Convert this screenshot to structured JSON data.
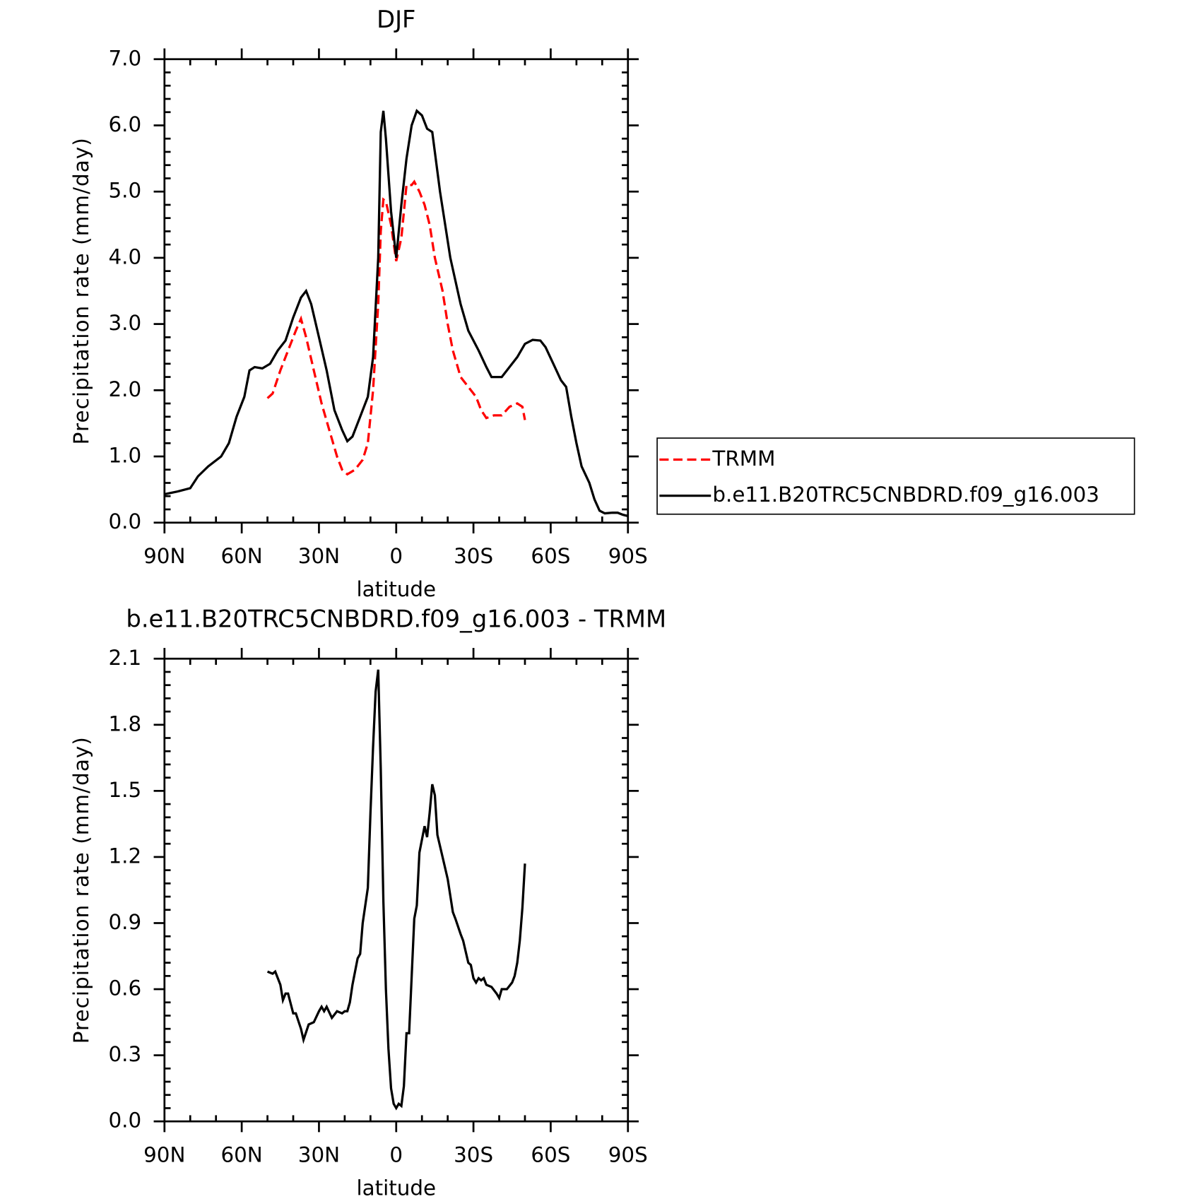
{
  "chart_data": [
    {
      "type": "line",
      "title": "DJF",
      "x_label": "latitude",
      "y_label": "Precipitation rate (mm/day)",
      "xlim": [
        90,
        -90
      ],
      "xticks": [
        {
          "value": 90,
          "label": "90N"
        },
        {
          "value": 60,
          "label": "60N"
        },
        {
          "value": 30,
          "label": "30N"
        },
        0,
        {
          "value": -30,
          "label": "30S"
        },
        {
          "value": -60,
          "label": "60S"
        },
        {
          "value": -90,
          "label": "90S"
        }
      ],
      "ylim": [
        0,
        7
      ],
      "yticks": [
        {
          "value": 0,
          "label": "0.0"
        },
        {
          "value": 1,
          "label": "1.0"
        },
        {
          "value": 2,
          "label": "2.0"
        },
        {
          "value": 3,
          "label": "3.0"
        },
        {
          "value": 4,
          "label": "4.0"
        },
        {
          "value": 5,
          "label": "5.0"
        },
        {
          "value": 6,
          "label": "6.0"
        },
        {
          "value": 7,
          "label": "7.0"
        }
      ],
      "legend": "right",
      "series": [
        {
          "name": "TRMM",
          "color": "#ff0000",
          "line_style": "dashed",
          "x": [
            50,
            48,
            45,
            42,
            39,
            37,
            35,
            32,
            29,
            26,
            23,
            21,
            19,
            16,
            13,
            11,
            9,
            7,
            6,
            5,
            4,
            2,
            0,
            -2,
            -4,
            -6,
            -7,
            -9,
            -11,
            -13,
            -15,
            -18,
            -20,
            -22,
            -25,
            -28,
            -31,
            -33,
            -35,
            -38,
            -41,
            -44,
            -47,
            -49,
            -50
          ],
          "values": [
            1.88,
            1.95,
            2.3,
            2.6,
            2.9,
            3.08,
            2.8,
            2.3,
            1.8,
            1.4,
            1.0,
            0.8,
            0.73,
            0.8,
            0.95,
            1.2,
            2.0,
            3.3,
            4.4,
            4.88,
            4.85,
            4.5,
            3.95,
            4.3,
            5.1,
            5.1,
            5.15,
            5.0,
            4.8,
            4.5,
            4.0,
            3.5,
            3.0,
            2.6,
            2.2,
            2.05,
            1.9,
            1.7,
            1.58,
            1.62,
            1.62,
            1.75,
            1.8,
            1.75,
            1.55
          ]
        },
        {
          "name": "b.e11.B20TRC5CNBDRD.f09_g16.003",
          "color": "#000000",
          "line_style": "solid",
          "x": [
            90,
            85,
            80,
            77,
            73,
            68,
            65,
            62,
            59,
            57,
            55,
            52,
            49,
            46,
            43,
            40,
            37,
            35,
            33,
            30,
            27,
            24,
            21,
            19,
            17,
            14,
            11,
            9,
            7,
            6,
            5,
            4,
            2,
            0,
            -2,
            -4,
            -6,
            -8,
            -10,
            -12,
            -14,
            -17,
            -21,
            -25,
            -28,
            -32,
            -35,
            -37,
            -41,
            -44,
            -47,
            -50,
            -53,
            -56,
            -58,
            -61,
            -64,
            -66,
            -68,
            -70,
            -72,
            -75,
            -77,
            -79,
            -81,
            -84,
            -86,
            -88,
            -90
          ],
          "values": [
            0.43,
            0.47,
            0.52,
            0.7,
            0.85,
            1.0,
            1.2,
            1.6,
            1.9,
            2.3,
            2.35,
            2.33,
            2.4,
            2.6,
            2.75,
            3.1,
            3.4,
            3.5,
            3.3,
            2.8,
            2.3,
            1.7,
            1.4,
            1.23,
            1.3,
            1.6,
            1.9,
            2.5,
            4.0,
            5.9,
            6.22,
            5.8,
            4.7,
            4.0,
            4.8,
            5.5,
            6.0,
            6.22,
            6.15,
            5.95,
            5.9,
            5.0,
            4.0,
            3.3,
            2.9,
            2.6,
            2.35,
            2.2,
            2.2,
            2.35,
            2.5,
            2.7,
            2.76,
            2.75,
            2.65,
            2.4,
            2.15,
            2.05,
            1.6,
            1.2,
            0.85,
            0.6,
            0.35,
            0.18,
            0.14,
            0.15,
            0.15,
            0.12,
            0.1
          ]
        }
      ]
    },
    {
      "type": "line",
      "title": "b.e11.B20TRC5CNBDRD.f09_g16.003 - TRMM",
      "x_label": "latitude",
      "y_label": "Precipitation rate (mm/day)",
      "xlim": [
        90,
        -90
      ],
      "xticks": [
        {
          "value": 90,
          "label": "90N"
        },
        {
          "value": 60,
          "label": "60N"
        },
        {
          "value": 30,
          "label": "30N"
        },
        0,
        {
          "value": -30,
          "label": "30S"
        },
        {
          "value": -60,
          "label": "60S"
        },
        {
          "value": -90,
          "label": "90S"
        }
      ],
      "ylim": [
        0,
        2.1
      ],
      "yticks": [
        {
          "value": 0,
          "label": "0.0"
        },
        0.3,
        0.6,
        0.9,
        1.2,
        1.5,
        1.8,
        2.1
      ],
      "series": [
        {
          "color": "#000000",
          "line_style": "solid",
          "x": [
            50,
            48,
            47,
            45,
            44,
            43,
            42,
            40,
            39,
            37,
            36,
            34,
            32,
            30,
            29,
            28,
            27,
            25,
            23,
            21,
            20,
            19,
            18,
            17,
            15,
            14,
            13,
            11,
            10,
            9,
            8,
            7,
            6,
            5,
            4,
            3,
            2,
            1,
            0,
            -1,
            -2,
            -3,
            -4,
            -5,
            -7,
            -8,
            -9,
            -11,
            -12,
            -13,
            -14,
            -15,
            -16,
            -18,
            -20,
            -22,
            -23,
            -25,
            -26,
            -28,
            -29,
            -30,
            -31,
            -32,
            -33,
            -34,
            -35,
            -37,
            -39,
            -40,
            -41,
            -42,
            -43,
            -45,
            -46,
            -47,
            -48,
            -49,
            -50
          ],
          "values": [
            0.68,
            0.67,
            0.68,
            0.62,
            0.55,
            0.58,
            0.58,
            0.49,
            0.49,
            0.42,
            0.37,
            0.44,
            0.45,
            0.5,
            0.52,
            0.5,
            0.52,
            0.47,
            0.5,
            0.49,
            0.5,
            0.5,
            0.54,
            0.62,
            0.74,
            0.76,
            0.9,
            1.06,
            1.4,
            1.7,
            1.95,
            2.05,
            1.6,
            1.0,
            0.6,
            0.33,
            0.15,
            0.08,
            0.06,
            0.08,
            0.07,
            0.16,
            0.4,
            0.4,
            0.92,
            0.98,
            1.22,
            1.34,
            1.29,
            1.4,
            1.53,
            1.48,
            1.3,
            1.2,
            1.1,
            0.95,
            0.92,
            0.85,
            0.82,
            0.72,
            0.71,
            0.65,
            0.63,
            0.65,
            0.64,
            0.65,
            0.62,
            0.61,
            0.58,
            0.56,
            0.6,
            0.6,
            0.6,
            0.63,
            0.66,
            0.72,
            0.82,
            0.97,
            1.17
          ]
        }
      ]
    }
  ]
}
